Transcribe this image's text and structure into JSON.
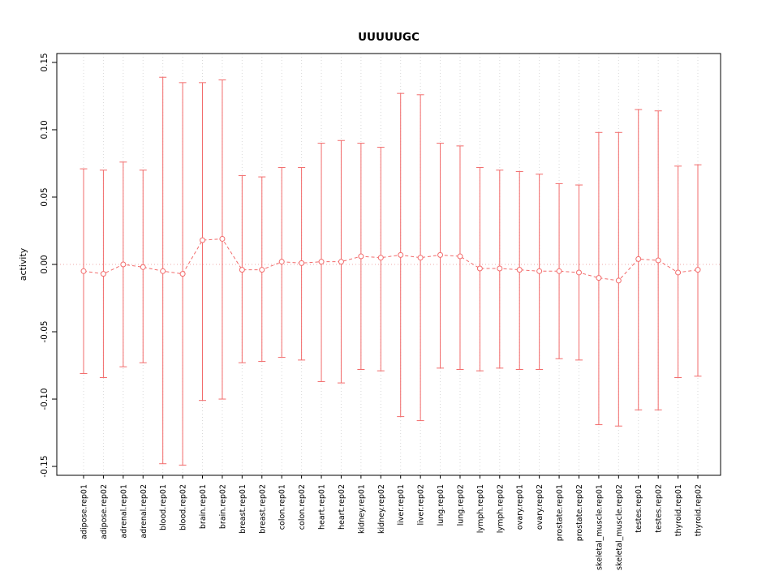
{
  "chart_data": {
    "type": "scatter",
    "subtype": "points-with-error-bars",
    "title": "UUUUUGC",
    "xlabel": "",
    "ylabel": "activity",
    "ylim": [
      -0.15,
      0.15
    ],
    "yticks": [
      -0.15,
      -0.1,
      -0.05,
      0.0,
      0.05,
      0.1,
      0.15
    ],
    "grid": "vertical-dotted",
    "legend": "none",
    "categories": [
      "adipose.rep01",
      "adipose.rep02",
      "adrenal.rep01",
      "adrenal.rep02",
      "blood.rep01",
      "blood.rep02",
      "brain.rep01",
      "brain.rep02",
      "breast.rep01",
      "breast.rep02",
      "colon.rep01",
      "colon.rep02",
      "heart.rep01",
      "heart.rep02",
      "kidney.rep01",
      "kidney.rep02",
      "liver.rep01",
      "liver.rep02",
      "lung.rep01",
      "lung.rep02",
      "lymph.rep01",
      "lymph.rep02",
      "ovary.rep01",
      "ovary.rep02",
      "prostate.rep01",
      "prostate.rep02",
      "skeletal_muscle.rep01",
      "skeletal_muscle.rep02",
      "testes.rep01",
      "testes.rep02",
      "thyroid.rep01",
      "thyroid.rep02"
    ],
    "series": [
      {
        "name": "activity",
        "values": [
          -0.005,
          -0.007,
          0.0,
          -0.002,
          -0.005,
          -0.007,
          0.018,
          0.019,
          -0.004,
          -0.004,
          0.002,
          0.001,
          0.002,
          0.002,
          0.006,
          0.005,
          0.007,
          0.005,
          0.007,
          0.006,
          -0.003,
          -0.003,
          -0.004,
          -0.005,
          -0.005,
          -0.006,
          -0.01,
          -0.012,
          0.004,
          0.003,
          -0.006,
          -0.004
        ],
        "upper": [
          0.071,
          0.07,
          0.076,
          0.07,
          0.139,
          0.135,
          0.135,
          0.137,
          0.066,
          0.065,
          0.072,
          0.072,
          0.09,
          0.092,
          0.09,
          0.087,
          0.127,
          0.126,
          0.09,
          0.088,
          0.072,
          0.07,
          0.069,
          0.067,
          0.06,
          0.059,
          0.098,
          0.098,
          0.115,
          0.114,
          0.073,
          0.074
        ],
        "lower": [
          -0.081,
          -0.084,
          -0.076,
          -0.073,
          -0.148,
          -0.149,
          -0.101,
          -0.1,
          -0.073,
          -0.072,
          -0.069,
          -0.071,
          -0.087,
          -0.088,
          -0.078,
          -0.079,
          -0.113,
          -0.116,
          -0.077,
          -0.078,
          -0.079,
          -0.077,
          -0.078,
          -0.078,
          -0.07,
          -0.071,
          -0.119,
          -0.12,
          -0.108,
          -0.108,
          -0.084,
          -0.083
        ]
      }
    ],
    "colors": {
      "error_bar": "#f26b6b",
      "point_fill": "#ffffff",
      "zero_line": "#efa8a8",
      "gridline": "#d8d8d8",
      "axis": "#000000",
      "background": "#ffffff"
    }
  }
}
